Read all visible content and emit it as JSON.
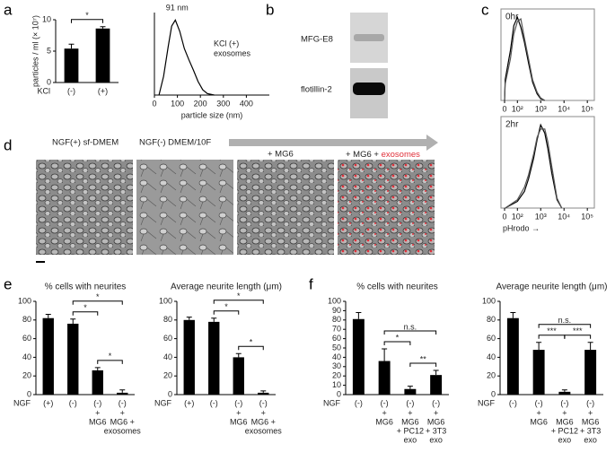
{
  "figure": {
    "panel_labels": [
      "a",
      "b",
      "c",
      "d",
      "e",
      "f"
    ],
    "blot_labels": [
      "MFG-E8",
      "flotillin-2"
    ],
    "image_captions": [
      "NGF(+) sf-DMEM",
      "NGF(-) DMEM/10F",
      "+ MG6",
      "+ MG6 + "
    ],
    "caption_highlight": "exosomes"
  },
  "chart_data": [
    {
      "type": "bar",
      "ylabel": "particles / ml (× 10⁷)",
      "row_label": "KCl",
      "categories": [
        "(-)",
        "(+)"
      ],
      "sublabels": [
        [],
        []
      ],
      "values": [
        5.4,
        8.6
      ],
      "errors": [
        0.7,
        0.3
      ],
      "color": "#000000",
      "ylim": [
        0,
        10
      ],
      "yticks": [
        0,
        5,
        10
      ],
      "brackets": [
        {
          "from": 0,
          "to": 1,
          "label": "*"
        }
      ]
    },
    {
      "type": "line",
      "xlabel": "particle size (nm)",
      "annotations": [
        "91 nm",
        "KCl (+)",
        "exosomes"
      ],
      "xlim": [
        0,
        500
      ],
      "ylim": [
        0,
        1.1
      ],
      "xticks": [
        0,
        100,
        200,
        300,
        400
      ],
      "series": [
        {
          "color": "#000000",
          "x": [
            20,
            40,
            60,
            75,
            91,
            110,
            130,
            150,
            170,
            190,
            210,
            230,
            260
          ],
          "values": [
            0,
            0.25,
            0.65,
            0.92,
            1,
            0.85,
            0.62,
            0.47,
            0.33,
            0.18,
            0.07,
            0.02,
            0
          ]
        }
      ]
    },
    {
      "type": "line",
      "xscale": "biexponential",
      "label": "0hr",
      "xlim": [
        0,
        200000
      ],
      "ylim": [
        0,
        1.1
      ],
      "xticks": [
        0,
        {
          "value": 100,
          "label": "10²"
        },
        {
          "value": 1000,
          "label": "10³"
        },
        {
          "value": 10000,
          "label": "10⁴"
        },
        {
          "value": 100000,
          "label": "10⁵"
        }
      ],
      "series": [
        {
          "color": "#000000",
          "x": [
            15,
            30,
            50,
            70,
            100,
            140,
            200,
            300,
            450,
            700,
            1000,
            1500
          ],
          "values": [
            0,
            0.25,
            0.6,
            0.9,
            1,
            0.88,
            0.7,
            0.45,
            0.22,
            0.08,
            0.02,
            0
          ]
        },
        {
          "color": "#555555",
          "x": [
            15,
            30,
            50,
            70,
            100,
            140,
            200,
            300,
            450,
            700,
            1000,
            1500
          ],
          "values": [
            0,
            0.2,
            0.5,
            0.8,
            0.95,
            0.98,
            0.75,
            0.5,
            0.25,
            0.1,
            0.03,
            0
          ]
        }
      ]
    },
    {
      "type": "line",
      "xscale": "biexponential",
      "label": "2hr",
      "xlabel": "pHrodo →",
      "xlim": [
        0,
        200000
      ],
      "ylim": [
        0,
        1.1
      ],
      "xticks": [
        0,
        {
          "value": 100,
          "label": "10²"
        },
        {
          "value": 1000,
          "label": "10³"
        },
        {
          "value": 10000,
          "label": "10⁴"
        },
        {
          "value": 100000,
          "label": "10⁵"
        }
      ],
      "series": [
        {
          "color": "#000000",
          "x": [
            30,
            100,
            200,
            300,
            500,
            700,
            1000,
            1500,
            2000,
            3000,
            5000,
            8000
          ],
          "values": [
            0,
            0.08,
            0.2,
            0.35,
            0.6,
            0.82,
            1,
            0.9,
            0.72,
            0.42,
            0.1,
            0
          ]
        },
        {
          "color": "#555555",
          "x": [
            30,
            100,
            200,
            300,
            500,
            700,
            1000,
            1500,
            2000,
            3000,
            5000,
            8000
          ],
          "values": [
            0,
            0.1,
            0.25,
            0.4,
            0.65,
            0.85,
            0.95,
            0.95,
            0.8,
            0.5,
            0.12,
            0
          ]
        }
      ]
    },
    {
      "type": "bar",
      "title": "% cells with neurites",
      "row_label": "NGF",
      "categories": [
        "(+)",
        "(-)",
        "(-)",
        "(-)"
      ],
      "sublabels": [
        [],
        [],
        [
          "+",
          "MG6"
        ],
        [
          "+",
          "MG6 +",
          "exosomes"
        ]
      ],
      "values": [
        82,
        76,
        26,
        2
      ],
      "errors": [
        4,
        5,
        3,
        3
      ],
      "color": "#000000",
      "ylim": [
        0,
        100
      ],
      "yticks": [
        0,
        20,
        40,
        60,
        80,
        100
      ],
      "brackets": [
        {
          "from": 1,
          "to": 2,
          "label": "*"
        },
        {
          "from": 1,
          "to": 3,
          "label": "*"
        },
        {
          "from": 2,
          "to": 3,
          "label": "*"
        }
      ]
    },
    {
      "type": "bar",
      "title": "Average neurite length (μm)",
      "row_label": "NGF",
      "categories": [
        "(+)",
        "(-)",
        "(-)",
        "(-)"
      ],
      "sublabels": [
        [],
        [],
        [
          "+",
          "MG6"
        ],
        [
          "+",
          "MG6 +",
          "exosomes"
        ]
      ],
      "values": [
        80,
        78,
        40,
        2
      ],
      "errors": [
        3,
        4,
        4,
        2
      ],
      "color": "#000000",
      "ylim": [
        0,
        100
      ],
      "yticks": [
        0,
        20,
        40,
        60,
        80,
        100
      ],
      "brackets": [
        {
          "from": 1,
          "to": 2,
          "label": "*"
        },
        {
          "from": 1,
          "to": 3,
          "label": "*"
        },
        {
          "from": 2,
          "to": 3,
          "label": "*"
        }
      ]
    },
    {
      "type": "bar",
      "title": "% cells with neurites",
      "row_label": "NGF",
      "categories": [
        "(-)",
        "(-)",
        "(-)",
        "(-)"
      ],
      "sublabels": [
        [],
        [
          "+",
          "MG6"
        ],
        [
          "+",
          "MG6",
          "+ PC12",
          "exo"
        ],
        [
          "+",
          "MG6",
          "+ 3T3",
          "exo"
        ]
      ],
      "values": [
        81,
        36,
        6,
        21
      ],
      "errors": [
        7,
        13,
        3,
        5
      ],
      "color": "#000000",
      "ylim": [
        0,
        100
      ],
      "yticks": [
        0,
        10,
        20,
        30,
        40,
        50,
        60,
        70,
        80,
        90,
        100
      ],
      "brackets": [
        {
          "from": 1,
          "to": 2,
          "label": "*"
        },
        {
          "from": 2,
          "to": 3,
          "label": "**"
        },
        {
          "from": 1,
          "to": 3,
          "label": "n.s."
        }
      ]
    },
    {
      "type": "bar",
      "title": "Average neurite length (μm)",
      "row_label": "NGF",
      "categories": [
        "(-)",
        "(-)",
        "(-)",
        "(-)"
      ],
      "sublabels": [
        [],
        [
          "+",
          "MG6"
        ],
        [
          "+",
          "MG6",
          "+ PC12",
          "exo"
        ],
        [
          "+",
          "MG6",
          "+ 3T3",
          "exo"
        ]
      ],
      "values": [
        82,
        48,
        3,
        48
      ],
      "errors": [
        6,
        8,
        2,
        8
      ],
      "color": "#000000",
      "ylim": [
        0,
        100
      ],
      "yticks": [
        0,
        20,
        40,
        60,
        80,
        100
      ],
      "brackets": [
        {
          "from": 1,
          "to": 2,
          "label": "***"
        },
        {
          "from": 2,
          "to": 3,
          "label": "***"
        },
        {
          "from": 1,
          "to": 3,
          "label": "n.s."
        }
      ]
    }
  ]
}
